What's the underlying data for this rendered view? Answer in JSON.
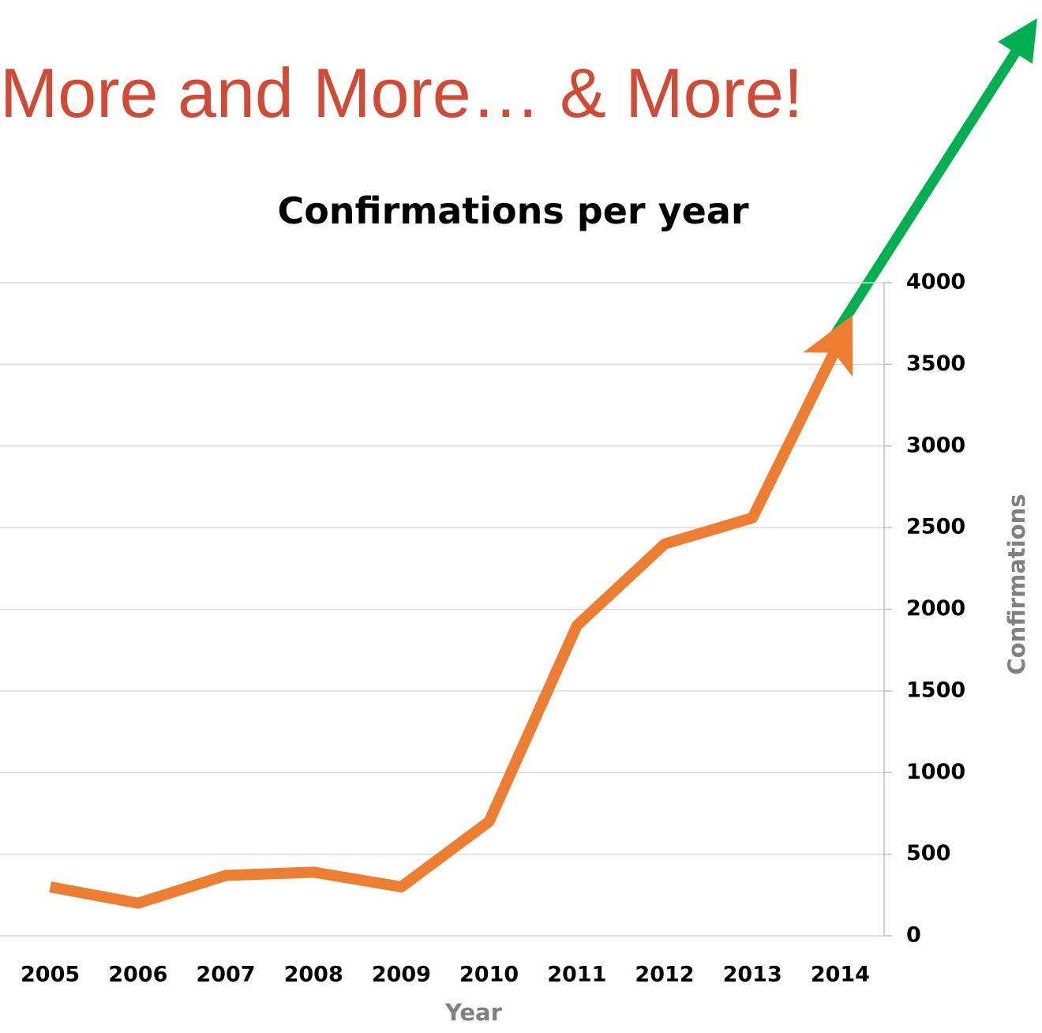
{
  "slide_title": "More and More… & More!",
  "chart_data": {
    "type": "line",
    "title": "Confirmations per year",
    "x_label": "Year",
    "y_label": "Confirmations",
    "categories": [
      "2005",
      "2006",
      "2007",
      "2008",
      "2009",
      "2010",
      "2011",
      "2012",
      "2013",
      "2014"
    ],
    "series": [
      {
        "name": "Confirmations",
        "color": "#ed7d31",
        "values": [
          300,
          200,
          370,
          390,
          300,
          700,
          1900,
          2400,
          2560,
          3650
        ]
      }
    ],
    "ylim": [
      0,
      4000
    ],
    "yticks": [
      0,
      500,
      1000,
      1500,
      2000,
      2500,
      3000,
      3500,
      4000
    ],
    "grid": true,
    "y_axis_side": "right"
  }
}
